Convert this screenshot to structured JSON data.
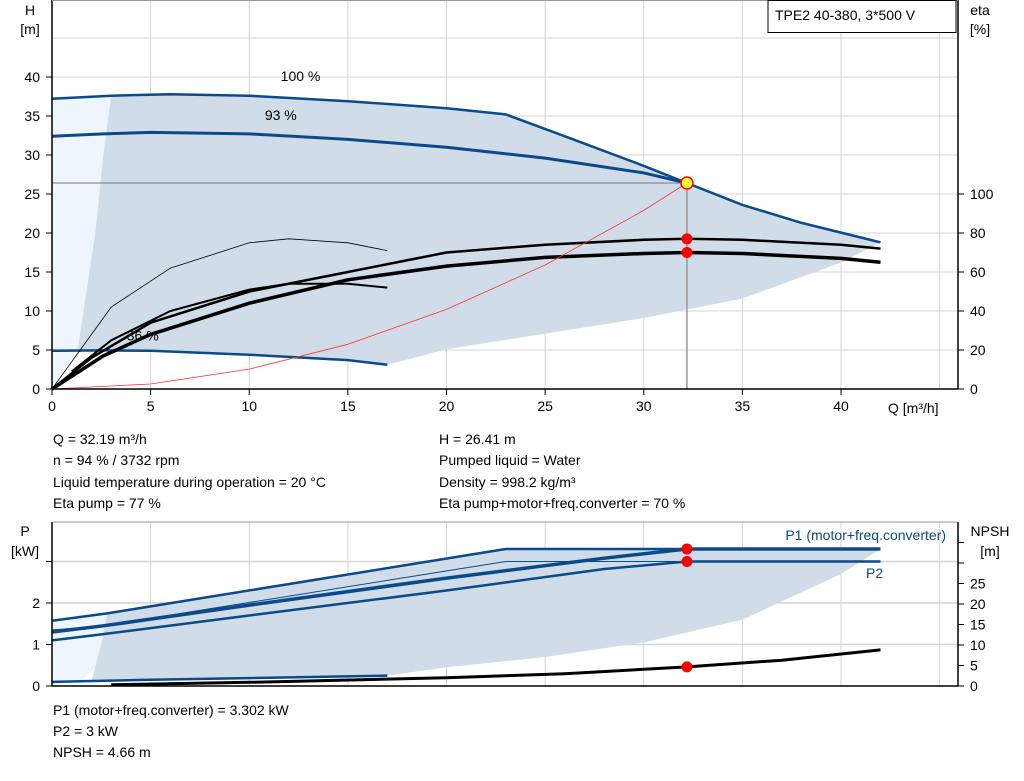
{
  "colors": {
    "curve": "#0a4a8a",
    "shade": "#d0dce8",
    "shade_light": "#eef5fc",
    "grid": "#d4d4d4",
    "marker": "#ff0000",
    "op_marker": "#ffff33",
    "system": "#ff3333"
  },
  "chart_data": [
    {
      "type": "line",
      "title": "TPE2 40-380, 3*500 V",
      "xlabel": "Q [m³/h]",
      "ylabel": "H\n[m]",
      "y2label": "eta\n[%]",
      "ylabel_lines": [
        "H",
        "[m]"
      ],
      "y2label_lines": [
        "eta",
        "[%]"
      ],
      "xlim": [
        0,
        45.9
      ],
      "ylim": [
        0,
        49.9
      ],
      "y2lim": [
        0,
        199.5
      ],
      "xticks": [
        0,
        5,
        10,
        15,
        20,
        25,
        30,
        35,
        40
      ],
      "yticks": [
        0,
        5,
        10,
        15,
        20,
        25,
        30,
        35,
        40
      ],
      "y2ticks": [
        0,
        20,
        40,
        60,
        80,
        100
      ],
      "grid": true,
      "annotations": [
        {
          "text": "100 %",
          "x": 12.6,
          "y": 39.5
        },
        {
          "text": "93 %",
          "x": 11.6,
          "y": 34.5
        },
        {
          "text": "36 %",
          "x": 4.6,
          "y": 6.2
        }
      ],
      "series": [
        {
          "id": "h100",
          "axis": "H",
          "points": [
            [
              0,
              37.2
            ],
            [
              3,
              37.6
            ],
            [
              6,
              37.8
            ],
            [
              10,
              37.6
            ],
            [
              15,
              36.9
            ],
            [
              20,
              36
            ],
            [
              23,
              35.2
            ],
            [
              26,
              32.4
            ],
            [
              30,
              28.6
            ],
            [
              32.19,
              26.41
            ],
            [
              35,
              23.6
            ],
            [
              38,
              21.3
            ],
            [
              42,
              18.8
            ]
          ]
        },
        {
          "id": "h93",
          "axis": "H",
          "points": [
            [
              0,
              32.4
            ],
            [
              2.6,
              32.7
            ],
            [
              5,
              32.9
            ],
            [
              10,
              32.7
            ],
            [
              15,
              32
            ],
            [
              20,
              31
            ],
            [
              25,
              29.6
            ],
            [
              30,
              27.7
            ],
            [
              32.19,
              26.41
            ]
          ]
        },
        {
          "id": "h36",
          "axis": "H",
          "points": [
            [
              0,
              4.9
            ],
            [
              2.6,
              4.95
            ],
            [
              5,
              4.9
            ],
            [
              10,
              4.4
            ],
            [
              15,
              3.7
            ],
            [
              17,
              3.1
            ]
          ]
        },
        {
          "id": "eta_pump",
          "axis": "eta",
          "points": [
            [
              0,
              0
            ],
            [
              2,
              16
            ],
            [
              5,
              34
            ],
            [
              10,
              50
            ],
            [
              15,
              60
            ],
            [
              20,
              70
            ],
            [
              25,
              74
            ],
            [
              30,
              76.5
            ],
            [
              32.19,
              77
            ],
            [
              35,
              76.5
            ],
            [
              40,
              74
            ],
            [
              42,
              72
            ]
          ]
        },
        {
          "id": "eta_total",
          "axis": "eta",
          "points": [
            [
              0,
              0
            ],
            [
              2.6,
              17
            ],
            [
              5,
              28
            ],
            [
              10,
              44
            ],
            [
              15,
              56
            ],
            [
              20,
              63
            ],
            [
              25,
              67.5
            ],
            [
              30,
              69.5
            ],
            [
              32.19,
              70
            ],
            [
              35,
              69.5
            ],
            [
              40,
              67
            ],
            [
              42,
              65
            ]
          ]
        },
        {
          "id": "eta_pump_min",
          "axis": "eta",
          "points": [
            [
              0,
              0
            ],
            [
              3,
              42
            ],
            [
              6,
              62
            ],
            [
              10,
              75
            ],
            [
              12,
              77
            ],
            [
              15,
              75
            ],
            [
              17,
              71
            ]
          ]
        },
        {
          "id": "eta_total_min",
          "axis": "eta",
          "points": [
            [
              1,
              9
            ],
            [
              3,
              25
            ],
            [
              6,
              40
            ],
            [
              10,
              51
            ],
            [
              12,
              54
            ],
            [
              15,
              54
            ],
            [
              17,
              52
            ]
          ]
        },
        {
          "id": "system",
          "axis": "H",
          "points": [
            [
              0,
              0
            ],
            [
              5,
              0.64
            ],
            [
              10,
              2.55
            ],
            [
              15,
              5.73
            ],
            [
              20,
              10.2
            ],
            [
              25,
              15.9
            ],
            [
              30,
              22.9
            ],
            [
              32.19,
              26.41
            ]
          ]
        }
      ],
      "operating_point": {
        "Q": 32.19,
        "H": 26.41,
        "eta_pump": 77,
        "eta_total": 70
      }
    },
    {
      "type": "line",
      "ylabel_lines": [
        "P",
        "[kW]"
      ],
      "y2label_lines": [
        "NPSH",
        "[m]"
      ],
      "xlim": [
        0,
        45.9
      ],
      "ylim": [
        0,
        3.95
      ],
      "y2lim": [
        0,
        40
      ],
      "yticks": [
        0,
        1,
        2,
        3
      ],
      "ytick_labels": [
        "0",
        "1",
        "2",
        ""
      ],
      "y2ticks": [
        0,
        5,
        10,
        15,
        20,
        25,
        30,
        35
      ],
      "y2tick_labels": [
        "0",
        "5",
        "10",
        "15",
        "20",
        "25",
        "",
        ""
      ],
      "grid": true,
      "legend": [
        {
          "text": "P1 (motor+freq.converter)"
        },
        {
          "text": "P2"
        }
      ],
      "series": [
        {
          "id": "p1_max",
          "axis": "P",
          "points": [
            [
              0,
              1.57
            ],
            [
              2.8,
              1.75
            ],
            [
              23,
              3.3
            ],
            [
              42,
              3.3
            ]
          ]
        },
        {
          "id": "p2_max",
          "axis": "P",
          "points": [
            [
              0,
              1.35
            ],
            [
              2.6,
              1.45
            ],
            [
              23,
              3.0
            ],
            [
              42,
              3.0
            ]
          ]
        },
        {
          "id": "p1",
          "axis": "P",
          "points": [
            [
              0,
              1.3
            ],
            [
              2.6,
              1.45
            ],
            [
              10,
              1.95
            ],
            [
              20,
              2.6
            ],
            [
              28,
              3.08
            ],
            [
              32.19,
              3.302
            ],
            [
              42,
              3.302
            ]
          ]
        },
        {
          "id": "p2",
          "axis": "P",
          "points": [
            [
              0,
              1.1
            ],
            [
              2.6,
              1.25
            ],
            [
              10,
              1.7
            ],
            [
              20,
              2.3
            ],
            [
              28,
              2.82
            ],
            [
              32.19,
              3.0
            ],
            [
              42,
              3.0
            ]
          ]
        },
        {
          "id": "p_min",
          "axis": "P",
          "points": [
            [
              0,
              0.1
            ],
            [
              5,
              0.15
            ],
            [
              17,
              0.25
            ]
          ]
        },
        {
          "id": "npsh",
          "axis": "NPSH",
          "points": [
            [
              3,
              0.3
            ],
            [
              10,
              0.9
            ],
            [
              20,
              2
            ],
            [
              26,
              3
            ],
            [
              32.19,
              4.66
            ],
            [
              37,
              6.3
            ],
            [
              42,
              8.8
            ]
          ]
        }
      ],
      "operating_point": {
        "Q": 32.19,
        "P1": 3.302,
        "P2": 3,
        "NPSH": 4.66
      }
    }
  ],
  "readout": {
    "left": [
      "Q = 32.19 m³/h",
      "n = 94 % / 3732 rpm",
      "Liquid temperature during operation = 20 °C",
      "Eta pump = 77 %"
    ],
    "right": [
      "H = 26.41 m",
      "Pumped liquid = Water",
      "Density = 998.2 kg/m³",
      "Eta pump+motor+freq.converter = 70 %"
    ],
    "bottom": [
      "P1 (motor+freq.converter) = 3.302 kW",
      "P2 = 3 kW",
      "NPSH = 4.66 m"
    ]
  }
}
